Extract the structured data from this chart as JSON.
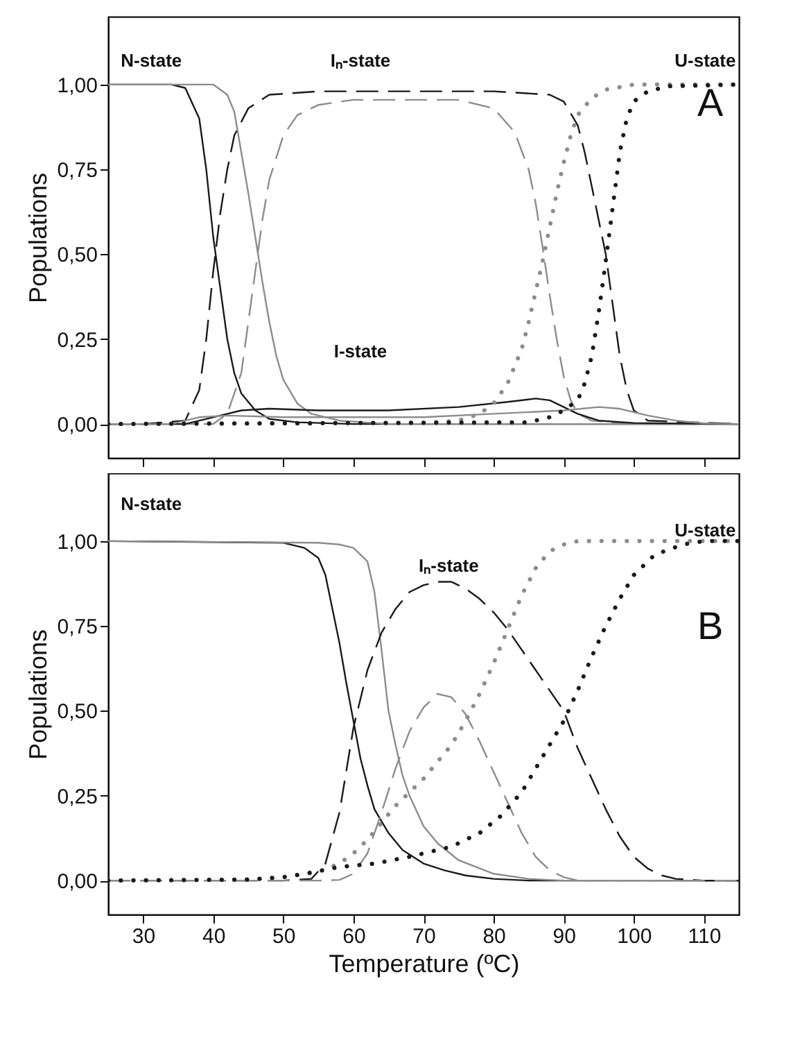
{
  "chart_data": [
    {
      "type": "line",
      "ylabel": "Populations",
      "xlim": [
        25,
        115
      ],
      "ylim": [
        -0.1,
        1.2
      ],
      "tick_labels": "y",
      "xticks": [
        30,
        40,
        50,
        60,
        70,
        80,
        90,
        100,
        110
      ],
      "yticks": [
        {
          "value": 0,
          "label": "0,00"
        },
        {
          "value": 0.25,
          "label": "0,25"
        },
        {
          "value": 0.5,
          "label": "0,50"
        },
        {
          "value": 0.75,
          "label": "0,75"
        },
        {
          "value": 1,
          "label": "1,00"
        }
      ],
      "annotations": [
        "N-state",
        "Iₙ-state",
        "U-state",
        "I-state",
        "A"
      ],
      "series": [
        {
          "color": "#1a1a1a",
          "line_style": "solid",
          "x": [
            25,
            34,
            36,
            38,
            39,
            40,
            41,
            42,
            43,
            44,
            46,
            48,
            52,
            60,
            115
          ],
          "values": [
            1,
            1,
            0.99,
            0.9,
            0.75,
            0.55,
            0.4,
            0.25,
            0.15,
            0.09,
            0.04,
            0.015,
            0.005,
            0,
            0
          ]
        },
        {
          "color": "#8c8c8c",
          "line_style": "solid",
          "x": [
            25,
            40,
            42,
            43,
            44,
            45,
            46,
            47,
            48,
            49,
            50,
            52,
            54,
            58,
            65,
            115
          ],
          "values": [
            1,
            1,
            0.97,
            0.92,
            0.8,
            0.68,
            0.55,
            0.42,
            0.3,
            0.2,
            0.13,
            0.06,
            0.03,
            0.01,
            0,
            0
          ]
        },
        {
          "color": "#1a1a1a",
          "line_style": "dashed",
          "x": [
            25,
            30,
            36,
            38,
            39,
            40,
            41,
            42,
            43,
            45,
            48,
            55,
            80,
            88,
            90,
            92,
            93,
            94,
            95,
            96,
            97,
            98,
            99,
            100,
            102,
            115
          ],
          "values": [
            0,
            0,
            0.01,
            0.1,
            0.25,
            0.45,
            0.62,
            0.75,
            0.85,
            0.93,
            0.97,
            0.98,
            0.98,
            0.97,
            0.95,
            0.88,
            0.8,
            0.7,
            0.6,
            0.5,
            0.35,
            0.2,
            0.1,
            0.04,
            0.01,
            0
          ]
        },
        {
          "color": "#8c8c8c",
          "line_style": "dashed",
          "x": [
            25,
            40,
            42,
            44,
            45,
            46,
            47,
            48,
            50,
            52,
            55,
            60,
            75,
            80,
            83,
            85,
            86,
            87,
            88,
            89,
            90,
            91,
            92,
            94,
            100,
            115
          ],
          "values": [
            0,
            0,
            0.03,
            0.15,
            0.3,
            0.45,
            0.6,
            0.72,
            0.85,
            0.91,
            0.94,
            0.955,
            0.955,
            0.93,
            0.86,
            0.75,
            0.65,
            0.52,
            0.38,
            0.25,
            0.14,
            0.07,
            0.03,
            0.01,
            0,
            0
          ]
        },
        {
          "color": "#1a1a1a",
          "line_style": "solid",
          "x": [
            25,
            36,
            40,
            44,
            48,
            55,
            65,
            75,
            82,
            86,
            88,
            90,
            92,
            95,
            100,
            115
          ],
          "values": [
            0,
            0,
            0.02,
            0.04,
            0.045,
            0.04,
            0.04,
            0.05,
            0.065,
            0.075,
            0.07,
            0.05,
            0.03,
            0.01,
            0.003,
            0
          ]
        },
        {
          "color": "#8c8c8c",
          "line_style": "solid",
          "x": [
            25,
            34,
            38,
            42,
            50,
            70,
            80,
            90,
            95,
            98,
            102,
            106,
            110,
            115
          ],
          "values": [
            0,
            0,
            0.02,
            0.025,
            0.02,
            0.02,
            0.03,
            0.04,
            0.05,
            0.045,
            0.025,
            0.01,
            0.002,
            0
          ]
        },
        {
          "color": "#8c8c8c",
          "line_style": "dotted",
          "x": [
            25,
            70,
            75,
            78,
            80,
            82,
            84,
            85,
            86,
            87,
            88,
            89,
            90,
            91,
            92,
            94,
            96,
            100,
            115
          ],
          "values": [
            0,
            0.003,
            0.01,
            0.03,
            0.06,
            0.12,
            0.22,
            0.3,
            0.39,
            0.48,
            0.58,
            0.68,
            0.77,
            0.85,
            0.91,
            0.96,
            0.985,
            1,
            1
          ]
        },
        {
          "color": "#1a1a1a",
          "line_style": "dotted",
          "x": [
            25,
            85,
            88,
            90,
            92,
            93,
            94,
            95,
            96,
            97,
            98,
            99,
            100,
            102,
            105,
            115
          ],
          "values": [
            0,
            0.005,
            0.02,
            0.04,
            0.07,
            0.12,
            0.2,
            0.33,
            0.48,
            0.64,
            0.8,
            0.9,
            0.95,
            0.98,
            0.995,
            1
          ]
        }
      ]
    },
    {
      "type": "line",
      "xlabel": "Temperature (ºC)",
      "ylabel": "Populations",
      "xlim": [
        25,
        115
      ],
      "ylim": [
        -0.1,
        1.2
      ],
      "xticks": [
        30,
        40,
        50,
        60,
        70,
        80,
        90,
        100,
        110
      ],
      "yticks": [
        {
          "value": 0,
          "label": "0,00"
        },
        {
          "value": 0.25,
          "label": "0,25"
        },
        {
          "value": 0.5,
          "label": "0,50"
        },
        {
          "value": 0.75,
          "label": "0,75"
        },
        {
          "value": 1,
          "label": "1,00"
        }
      ],
      "annotations": [
        "N-state",
        "Iₙ-state",
        "U-state",
        "B"
      ],
      "series": [
        {
          "color": "#1a1a1a",
          "line_style": "solid",
          "x": [
            25,
            50,
            53,
            55,
            56,
            57,
            58,
            59,
            60,
            61,
            62,
            63,
            65,
            67,
            70,
            73,
            76,
            80,
            85,
            115
          ],
          "values": [
            1,
            0.995,
            0.98,
            0.95,
            0.9,
            0.8,
            0.7,
            0.58,
            0.47,
            0.36,
            0.28,
            0.21,
            0.14,
            0.09,
            0.05,
            0.03,
            0.015,
            0.005,
            0,
            0
          ]
        },
        {
          "color": "#8c8c8c",
          "line_style": "solid",
          "x": [
            25,
            55,
            58,
            60,
            62,
            63,
            64,
            65,
            66,
            67,
            68,
            70,
            72,
            75,
            80,
            85,
            90,
            115
          ],
          "values": [
            1,
            0.995,
            0.99,
            0.98,
            0.94,
            0.85,
            0.68,
            0.5,
            0.4,
            0.31,
            0.25,
            0.16,
            0.11,
            0.06,
            0.02,
            0.005,
            0,
            0
          ]
        },
        {
          "color": "#1a1a1a",
          "line_style": "dashed",
          "x": [
            25,
            50,
            54,
            56,
            58,
            60,
            62,
            64,
            66,
            68,
            70,
            72,
            74,
            76,
            78,
            80,
            82,
            84,
            86,
            88,
            90,
            92,
            94,
            96,
            98,
            100,
            102,
            104,
            106,
            110,
            115
          ],
          "values": [
            0,
            0,
            0.005,
            0.05,
            0.2,
            0.45,
            0.62,
            0.73,
            0.8,
            0.85,
            0.87,
            0.88,
            0.88,
            0.86,
            0.83,
            0.79,
            0.74,
            0.68,
            0.62,
            0.56,
            0.5,
            0.39,
            0.3,
            0.21,
            0.13,
            0.07,
            0.035,
            0.015,
            0.005,
            0,
            0
          ]
        },
        {
          "color": "#8c8c8c",
          "line_style": "dashed",
          "x": [
            25,
            55,
            58,
            60,
            62,
            64,
            66,
            68,
            70,
            72,
            74,
            76,
            78,
            80,
            82,
            84,
            86,
            88,
            90,
            92,
            115
          ],
          "values": [
            0,
            0,
            0.002,
            0.02,
            0.08,
            0.2,
            0.33,
            0.44,
            0.51,
            0.55,
            0.54,
            0.49,
            0.41,
            0.32,
            0.23,
            0.14,
            0.07,
            0.03,
            0.01,
            0,
            0
          ]
        },
        {
          "color": "#8c8c8c",
          "line_style": "dotted",
          "x": [
            25,
            45,
            50,
            55,
            58,
            60,
            62,
            64,
            66,
            68,
            70,
            72,
            74,
            76,
            78,
            80,
            82,
            84,
            86,
            88,
            90,
            92,
            115
          ],
          "values": [
            0,
            0.002,
            0.01,
            0.025,
            0.05,
            0.08,
            0.12,
            0.17,
            0.22,
            0.26,
            0.3,
            0.35,
            0.4,
            0.47,
            0.55,
            0.64,
            0.74,
            0.84,
            0.92,
            0.97,
            0.99,
            1,
            1
          ]
        },
        {
          "color": "#1a1a1a",
          "line_style": "dotted",
          "x": [
            25,
            45,
            50,
            53,
            58,
            63,
            68,
            74,
            78,
            81,
            84,
            86,
            88,
            90,
            92,
            94,
            96,
            98,
            100,
            103,
            107,
            110,
            115
          ],
          "values": [
            0,
            0.003,
            0.01,
            0.02,
            0.04,
            0.05,
            0.07,
            0.1,
            0.14,
            0.19,
            0.26,
            0.33,
            0.4,
            0.47,
            0.56,
            0.66,
            0.75,
            0.83,
            0.9,
            0.96,
            0.99,
            1,
            1
          ]
        }
      ]
    }
  ]
}
